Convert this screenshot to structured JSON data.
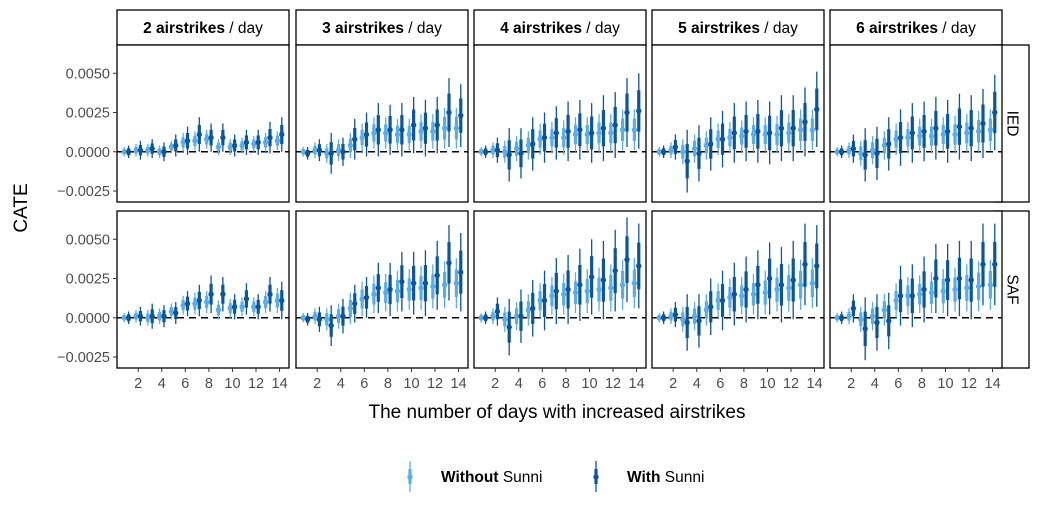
{
  "chart_data": {
    "type": "pointrange",
    "ylabel": "CATE",
    "xlabel": "The number of days with increased airstrikes",
    "x": [
      1,
      2,
      3,
      4,
      5,
      6,
      7,
      8,
      9,
      10,
      11,
      12,
      13,
      14
    ],
    "xticks": [
      2,
      4,
      6,
      8,
      10,
      12,
      14
    ],
    "xtick_labels": [
      "2",
      "4",
      "6",
      "8",
      "10",
      "12",
      "14"
    ],
    "xlim": [
      0.2,
      14.8
    ],
    "ylim": [
      -0.0032,
      0.0068
    ],
    "yticks": [
      -0.0025,
      0.0,
      0.0025,
      0.005
    ],
    "ytick_labels": [
      "−0.0025",
      "0.0000",
      "0.0025",
      "0.0050"
    ],
    "reference_line_y": 0,
    "columns": [
      {
        "bold": "2 airstrikes",
        "rest": " / day"
      },
      {
        "bold": "3 airstrikes",
        "rest": " / day"
      },
      {
        "bold": "4 airstrikes",
        "rest": " / day"
      },
      {
        "bold": "5 airstrikes",
        "rest": " / day"
      },
      {
        "bold": "6 airstrikes",
        "rest": " / day"
      }
    ],
    "rows": [
      "IED",
      "SAF"
    ],
    "series": [
      {
        "name": "Without Sunni",
        "legend_bold": "Without",
        "legend_rest": " Sunni",
        "color": "#5aade6"
      },
      {
        "name": "With Sunni",
        "legend_bold": "With",
        "legend_rest": " Sunni",
        "color": "#0d5499"
      }
    ],
    "panels": [
      [
        {
          "without": [
            0.0,
            0.0001,
            0.0001,
            0.0,
            0.0003,
            0.0006,
            0.0007,
            0.0008,
            0.0003,
            0.0003,
            0.0004,
            0.0005,
            0.0006,
            0.0007
          ],
          "with": [
            0.0,
            0.0001,
            0.0002,
            0.0,
            0.0004,
            0.0007,
            0.0011,
            0.0009,
            0.0009,
            0.0004,
            0.0006,
            0.0006,
            0.0009,
            0.0011
          ],
          "err_without": [
            0.0003,
            0.0004,
            0.0004,
            0.0004,
            0.0004,
            0.0006,
            0.0006,
            0.0006,
            0.0005,
            0.0005,
            0.0005,
            0.0005,
            0.0006,
            0.0006
          ],
          "err_with": [
            0.0004,
            0.0006,
            0.0006,
            0.0006,
            0.0007,
            0.0009,
            0.0011,
            0.0009,
            0.0009,
            0.0007,
            0.0008,
            0.0008,
            0.001,
            0.0011
          ]
        },
        {
          "without": [
            0.0,
            0.0001,
            -0.0001,
            0.0001,
            0.0004,
            0.0009,
            0.0012,
            0.0012,
            0.0011,
            0.0011,
            0.0013,
            0.0013,
            0.0015,
            0.0015
          ],
          "with": [
            -0.0001,
            0.0001,
            -0.0001,
            0.0,
            0.0008,
            0.0011,
            0.0014,
            0.0014,
            0.0014,
            0.0017,
            0.0015,
            0.0017,
            0.0025,
            0.0023
          ],
          "err_without": [
            0.0003,
            0.0005,
            0.0006,
            0.0007,
            0.0008,
            0.0009,
            0.001,
            0.001,
            0.001,
            0.001,
            0.0011,
            0.0011,
            0.0013,
            0.0013
          ],
          "err_with": [
            0.0004,
            0.0007,
            0.0013,
            0.0009,
            0.0013,
            0.0014,
            0.0017,
            0.0016,
            0.0017,
            0.0018,
            0.0018,
            0.0018,
            0.0022,
            0.002
          ]
        },
        {
          "without": [
            0.0,
            0.0001,
            0.0,
            0.0002,
            0.0004,
            0.0008,
            0.0009,
            0.0009,
            0.0011,
            0.0011,
            0.0012,
            0.0012,
            0.0014,
            0.0014
          ],
          "with": [
            0.0,
            0.0001,
            -0.0002,
            -0.0001,
            0.0005,
            0.0009,
            0.0012,
            0.0013,
            0.0014,
            0.0012,
            0.0015,
            0.0017,
            0.0025,
            0.0026
          ],
          "err_without": [
            0.0003,
            0.0005,
            0.0007,
            0.0008,
            0.0009,
            0.001,
            0.001,
            0.0011,
            0.0011,
            0.0011,
            0.0012,
            0.0012,
            0.0013,
            0.0013
          ],
          "err_with": [
            0.0004,
            0.0008,
            0.0017,
            0.0016,
            0.0017,
            0.0016,
            0.0017,
            0.0019,
            0.0019,
            0.0019,
            0.0021,
            0.0021,
            0.0022,
            0.0024
          ]
        },
        {
          "without": [
            0.0,
            0.0001,
            0.0,
            0.0002,
            0.0004,
            0.0008,
            0.0009,
            0.001,
            0.0011,
            0.0011,
            0.0011,
            0.0012,
            0.0014,
            0.0014
          ],
          "with": [
            0.0,
            0.0003,
            -0.0006,
            -0.0001,
            0.0005,
            0.0008,
            0.0012,
            0.0013,
            0.0013,
            0.0012,
            0.0015,
            0.0015,
            0.0019,
            0.0027
          ],
          "err_without": [
            0.0003,
            0.0005,
            0.0008,
            0.0009,
            0.0009,
            0.001,
            0.001,
            0.001,
            0.0011,
            0.0011,
            0.0012,
            0.0012,
            0.0013,
            0.0013
          ],
          "err_with": [
            0.0004,
            0.0008,
            0.002,
            0.0018,
            0.0017,
            0.0018,
            0.0019,
            0.0019,
            0.002,
            0.002,
            0.0021,
            0.0021,
            0.0022,
            0.0024
          ]
        },
        {
          "without": [
            0.0,
            0.0001,
            -0.0001,
            0.0001,
            0.0004,
            0.0008,
            0.0009,
            0.001,
            0.001,
            0.0011,
            0.0011,
            0.0012,
            0.0013,
            0.0014
          ],
          "with": [
            0.0,
            0.0002,
            -0.0002,
            -0.0001,
            0.0005,
            0.0009,
            0.0012,
            0.0013,
            0.0015,
            0.0013,
            0.0016,
            0.0015,
            0.0018,
            0.0025
          ],
          "err_without": [
            0.0003,
            0.0005,
            0.0008,
            0.0009,
            0.0009,
            0.001,
            0.001,
            0.0011,
            0.0011,
            0.0011,
            0.0012,
            0.0012,
            0.0013,
            0.0013
          ],
          "err_with": [
            0.0004,
            0.0009,
            0.0017,
            0.0017,
            0.0017,
            0.0018,
            0.0019,
            0.0019,
            0.002,
            0.002,
            0.0021,
            0.0021,
            0.0022,
            0.0024
          ]
        }
      ],
      [
        {
          "without": [
            0.0,
            0.0001,
            0.0,
            0.0001,
            0.0004,
            0.0008,
            0.0009,
            0.001,
            0.0005,
            0.0006,
            0.0007,
            0.0007,
            0.001,
            0.0011
          ],
          "with": [
            0.0,
            0.0001,
            0.0001,
            0.0001,
            0.0003,
            0.0009,
            0.0011,
            0.0015,
            0.0015,
            0.0007,
            0.0012,
            0.0007,
            0.0015,
            0.0011
          ],
          "err_without": [
            0.0003,
            0.0004,
            0.0005,
            0.0005,
            0.0005,
            0.0006,
            0.0007,
            0.0007,
            0.0006,
            0.0006,
            0.0006,
            0.0006,
            0.0007,
            0.0008
          ],
          "err_with": [
            0.0004,
            0.0006,
            0.0008,
            0.0007,
            0.0007,
            0.0008,
            0.001,
            0.0012,
            0.0011,
            0.0008,
            0.001,
            0.0008,
            0.0011,
            0.0012
          ]
        },
        {
          "without": [
            0.0,
            0.0001,
            -0.0001,
            0.0001,
            0.0006,
            0.0012,
            0.0015,
            0.0016,
            0.0017,
            0.0018,
            0.0019,
            0.002,
            0.0021,
            0.0022
          ],
          "with": [
            -0.0001,
            -0.0001,
            -0.0005,
            0.0001,
            0.0009,
            0.0013,
            0.0019,
            0.0018,
            0.0023,
            0.0022,
            0.0022,
            0.0027,
            0.0035,
            0.0029
          ],
          "err_without": [
            0.0003,
            0.0005,
            0.0007,
            0.0008,
            0.001,
            0.0011,
            0.0012,
            0.0012,
            0.0013,
            0.0013,
            0.0014,
            0.0014,
            0.0015,
            0.0016
          ],
          "err_with": [
            0.0004,
            0.0008,
            0.0013,
            0.0011,
            0.0012,
            0.0013,
            0.0016,
            0.0017,
            0.0019,
            0.002,
            0.0021,
            0.0022,
            0.0024,
            0.0025
          ]
        },
        {
          "without": [
            0.0,
            0.0001,
            -0.0001,
            0.0001,
            0.0005,
            0.0011,
            0.0014,
            0.0015,
            0.0016,
            0.0017,
            0.0018,
            0.0019,
            0.0021,
            0.0022
          ],
          "with": [
            0.0,
            0.0004,
            -0.0006,
            0.0001,
            0.0006,
            0.0011,
            0.0017,
            0.0018,
            0.0021,
            0.0026,
            0.0024,
            0.003,
            0.0037,
            0.0033
          ],
          "err_without": [
            0.0003,
            0.0005,
            0.0008,
            0.0009,
            0.001,
            0.0011,
            0.0012,
            0.0013,
            0.0013,
            0.0014,
            0.0014,
            0.0015,
            0.0016,
            0.0016
          ],
          "err_with": [
            0.0004,
            0.0009,
            0.0018,
            0.0017,
            0.0018,
            0.0019,
            0.0021,
            0.0022,
            0.0023,
            0.0024,
            0.0025,
            0.0026,
            0.0027,
            0.0027
          ]
        },
        {
          "without": [
            0.0,
            0.0001,
            -0.0001,
            0.0001,
            0.0005,
            0.0011,
            0.0013,
            0.0014,
            0.0015,
            0.0016,
            0.0018,
            0.0019,
            0.0021,
            0.0022
          ],
          "with": [
            0.0,
            0.0002,
            -0.0003,
            -0.0002,
            0.0007,
            0.0011,
            0.0015,
            0.0018,
            0.0021,
            0.0025,
            0.0021,
            0.0024,
            0.0034,
            0.0033
          ],
          "err_without": [
            0.0003,
            0.0005,
            0.0008,
            0.0009,
            0.001,
            0.0011,
            0.0012,
            0.0012,
            0.0013,
            0.0014,
            0.0014,
            0.0015,
            0.0016,
            0.0016
          ],
          "err_with": [
            0.0004,
            0.0008,
            0.0018,
            0.0017,
            0.0018,
            0.0019,
            0.002,
            0.0021,
            0.0022,
            0.0023,
            0.0024,
            0.0025,
            0.0026,
            0.0026
          ]
        },
        {
          "without": [
            0.0,
            0.0001,
            -0.0001,
            0.0001,
            0.0005,
            0.0011,
            0.0014,
            0.0015,
            0.0016,
            0.0017,
            0.0018,
            0.0019,
            0.002,
            0.0021
          ],
          "with": [
            0.0,
            0.0006,
            -0.0007,
            -0.0003,
            -0.0002,
            0.0014,
            0.0014,
            0.0018,
            0.0025,
            0.0024,
            0.0025,
            0.0024,
            0.0034,
            0.0034
          ],
          "err_without": [
            0.0003,
            0.0005,
            0.0008,
            0.0009,
            0.001,
            0.0011,
            0.0012,
            0.0012,
            0.0013,
            0.0014,
            0.0014,
            0.0015,
            0.0016,
            0.0016
          ],
          "err_with": [
            0.0004,
            0.0009,
            0.002,
            0.0018,
            0.0018,
            0.0019,
            0.002,
            0.0021,
            0.0022,
            0.0023,
            0.0024,
            0.0025,
            0.0026,
            0.0026
          ]
        }
      ]
    ]
  }
}
